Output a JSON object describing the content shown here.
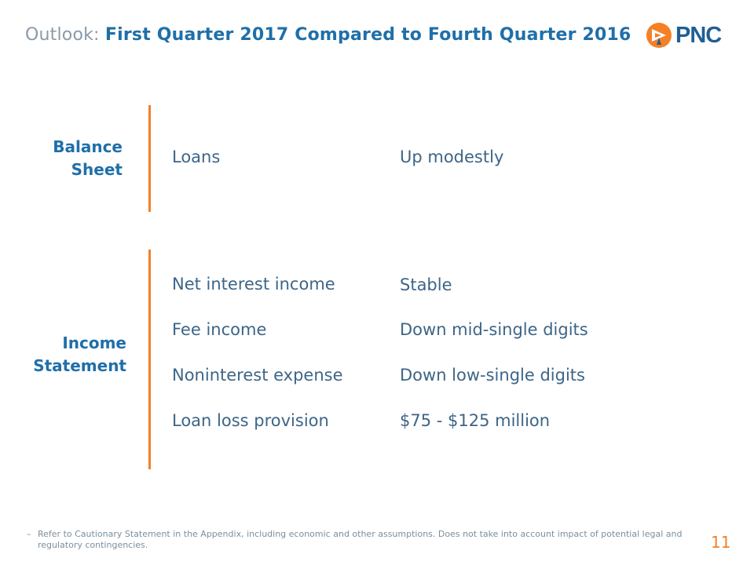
{
  "slide": {
    "title_prefix": "Outlook:",
    "title_main": "First Quarter 2017 Compared to Fourth Quarter 2016",
    "logo_text": "PNC",
    "brand_color": "#f58025",
    "accent_color": "#1f6fa9",
    "page_number": "11"
  },
  "balance_sheet": {
    "label_line1": "Balance",
    "label_line2": "Sheet",
    "rows": [
      {
        "label": "Loans",
        "value": "Up modestly"
      }
    ]
  },
  "income_statement": {
    "label_line1": "Income",
    "label_line2": "Statement",
    "rows": [
      {
        "label": "Net interest income",
        "value": "Stable"
      },
      {
        "label": "Fee income",
        "value": "Down mid-single digits"
      },
      {
        "label": "Noninterest expense",
        "value": "Down low-single digits"
      },
      {
        "label": "Loan loss provision",
        "value": "$75 - $125 million"
      }
    ]
  },
  "footnote": {
    "marker": "–",
    "text": "Refer to Cautionary Statement in the Appendix, including economic and other assumptions.  Does not take into account impact of potential legal and regulatory contingencies."
  }
}
